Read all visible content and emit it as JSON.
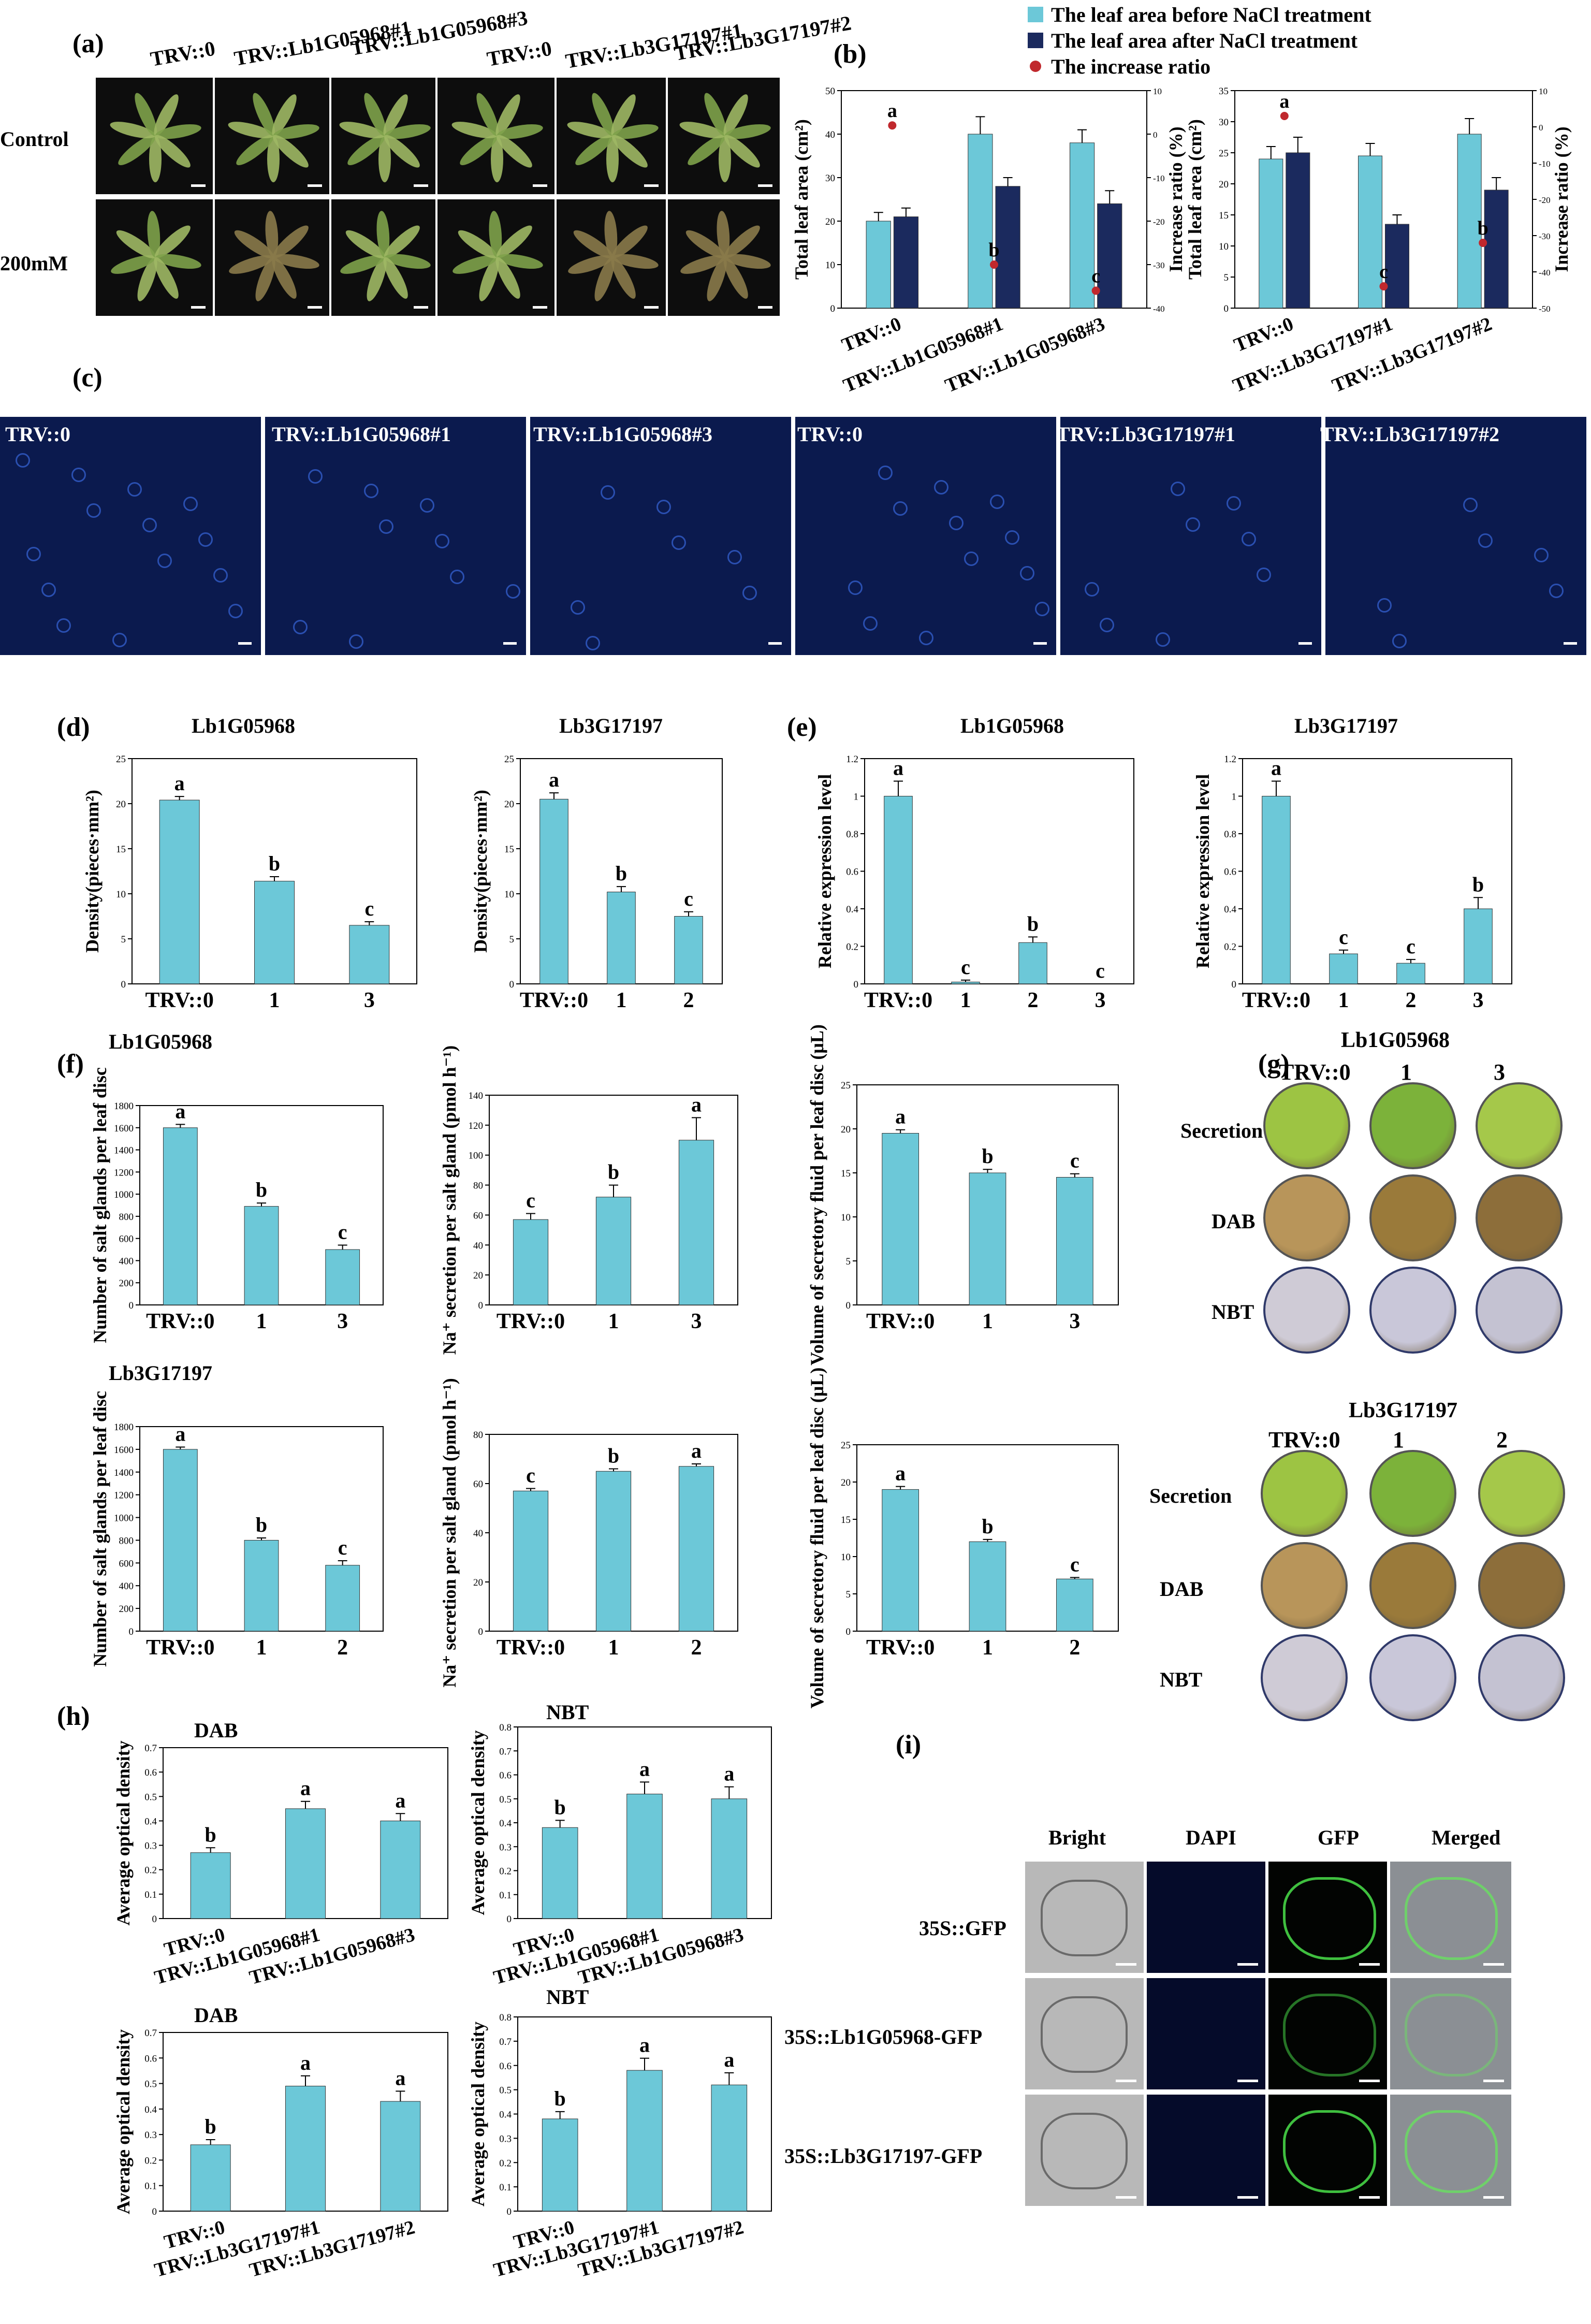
{
  "panels": {
    "a": "(a)",
    "b": "(b)",
    "c": "(c)",
    "d": "(d)",
    "e": "(e)",
    "f": "(f)",
    "g": "(g)",
    "h": "(h)",
    "i": "(i)"
  },
  "panel_a": {
    "columns": [
      "TRV::0",
      "TRV::Lb1G05968#1",
      "TRV::Lb1G05968#3",
      "TRV::0",
      "TRV::Lb3G17197#1",
      "TRV::Lb3G17197#2"
    ],
    "rows": [
      "Control",
      "200mM"
    ]
  },
  "legend_b": {
    "before": "The leaf area before NaCl treatment",
    "after": "The leaf area after NaCl treatment",
    "ratio": "The increase ratio"
  },
  "panel_c": {
    "labels": [
      "TRV::0",
      "TRV::Lb1G05968#1",
      "TRV::Lb1G05968#3",
      "TRV::0",
      "TRV::Lb3G17197#1",
      "TRV::Lb3G17197#2"
    ]
  },
  "panel_g": {
    "top_title": "Lb1G05968",
    "top_cols": [
      "TRV::0",
      "1",
      "3"
    ],
    "bottom_title": "Lb3G17197",
    "bottom_cols": [
      "TRV::0",
      "1",
      "2"
    ],
    "rows": [
      "Secretion",
      "DAB",
      "NBT"
    ]
  },
  "panel_i": {
    "cols": [
      "Bright",
      "DAPI",
      "GFP",
      "Merged"
    ],
    "rows": [
      "35S::GFP",
      "35S::Lb1G05968-GFP",
      "35S::Lb3G17197-GFP"
    ]
  },
  "colors": {
    "bar": "#6cc8d8",
    "bar_dark": "#1b2a5e",
    "ratio_dot": "#c0282d"
  },
  "chart_data": [
    {
      "id": "b1",
      "type": "bar",
      "categories": [
        "TRV::0",
        "TRV::Lb1G05968#1",
        "TRV::Lb1G05968#3"
      ],
      "series": [
        {
          "name": "The leaf area before NaCl treatment",
          "values": [
            20,
            40,
            38
          ],
          "err": [
            2,
            4,
            3
          ]
        },
        {
          "name": "The leaf area after NaCl treatment",
          "values": [
            21,
            28,
            24
          ],
          "err": [
            2,
            2,
            3
          ]
        }
      ],
      "ratio": {
        "name": "The increase ratio",
        "values": [
          2,
          -30,
          -36
        ],
        "letters": [
          "a",
          "b",
          "c"
        ]
      },
      "ylabel": "Total leaf area (cm²)",
      "ylabel2": "Increase ratio (%)",
      "ylim": [
        0,
        50
      ],
      "y2lim": [
        -40,
        10
      ],
      "yticks": [
        0,
        10,
        20,
        30,
        40,
        50
      ],
      "y2ticks": [
        -40,
        -30,
        -20,
        -10,
        0,
        10
      ]
    },
    {
      "id": "b2",
      "type": "bar",
      "categories": [
        "TRV::0",
        "TRV::Lb3G17197#1",
        "TRV::Lb3G17197#2"
      ],
      "series": [
        {
          "name": "The leaf area before NaCl treatment",
          "values": [
            24,
            24.5,
            28
          ],
          "err": [
            2,
            2,
            2.5
          ]
        },
        {
          "name": "The leaf area after NaCl treatment",
          "values": [
            25,
            13.5,
            19
          ],
          "err": [
            2.5,
            1.5,
            2
          ]
        }
      ],
      "ratio": {
        "name": "The increase ratio",
        "values": [
          3,
          -44,
          -32
        ],
        "letters": [
          "a",
          "c",
          "b"
        ]
      },
      "ylabel": "Total leaf area (cm²)",
      "ylabel2": "Increase ratio (%)",
      "ylim": [
        0,
        35
      ],
      "y2lim": [
        -50,
        10
      ],
      "yticks": [
        0,
        5,
        10,
        15,
        20,
        25,
        30,
        35
      ],
      "y2ticks": [
        -50,
        -40,
        -30,
        -20,
        -10,
        0,
        10
      ]
    },
    {
      "id": "d1",
      "type": "bar",
      "title": "Lb1G05968",
      "categories": [
        "TRV::0",
        "1",
        "3"
      ],
      "values": [
        20.4,
        11.4,
        6.5
      ],
      "err": [
        0.4,
        0.5,
        0.4
      ],
      "letters": [
        "a",
        "b",
        "c"
      ],
      "ylabel": "Density(pieces·mm²)",
      "ylim": [
        0,
        25
      ],
      "yticks": [
        0,
        5,
        10,
        15,
        20,
        25
      ]
    },
    {
      "id": "d2",
      "type": "bar",
      "title": "Lb3G17197",
      "categories": [
        "TRV::0",
        "1",
        "2"
      ],
      "values": [
        20.5,
        10.2,
        7.5
      ],
      "err": [
        0.7,
        0.6,
        0.5
      ],
      "letters": [
        "a",
        "b",
        "c"
      ],
      "ylabel": "Density(pieces·mm²)",
      "ylim": [
        0,
        25
      ],
      "yticks": [
        0,
        5,
        10,
        15,
        20,
        25
      ]
    },
    {
      "id": "e1",
      "type": "bar",
      "title": "Lb1G05968",
      "categories": [
        "TRV::0",
        "1",
        "2",
        "3"
      ],
      "values": [
        1.0,
        0.01,
        0.22,
        0.0
      ],
      "err": [
        0.08,
        0.01,
        0.03,
        0.0
      ],
      "letters": [
        "a",
        "c",
        "b",
        "c"
      ],
      "ylabel": "Relative expression level",
      "ylim": [
        0,
        1.2
      ],
      "yticks": [
        0,
        0.2,
        0.4,
        0.6,
        0.8,
        1.0,
        1.2
      ]
    },
    {
      "id": "e2",
      "type": "bar",
      "title": "Lb3G17197",
      "categories": [
        "TRV::0",
        "1",
        "2",
        "3"
      ],
      "values": [
        1.0,
        0.16,
        0.11,
        0.4
      ],
      "err": [
        0.08,
        0.02,
        0.02,
        0.06
      ],
      "letters": [
        "a",
        "c",
        "c",
        "b"
      ],
      "ylabel": "Relative expression level",
      "ylim": [
        0,
        1.2
      ],
      "yticks": [
        0,
        0.2,
        0.4,
        0.6,
        0.8,
        1.0,
        1.2
      ]
    },
    {
      "id": "f1",
      "type": "bar",
      "title": "Lb1G05968",
      "categories": [
        "TRV::0",
        "1",
        "3"
      ],
      "values": [
        1600,
        890,
        500
      ],
      "err": [
        30,
        30,
        40
      ],
      "letters": [
        "a",
        "b",
        "c"
      ],
      "ylabel": "Number of salt glands per leaf disc",
      "ylim": [
        0,
        1800
      ],
      "yticks": [
        0,
        200,
        400,
        600,
        800,
        1000,
        1200,
        1400,
        1600,
        1800
      ]
    },
    {
      "id": "f2",
      "type": "bar",
      "categories": [
        "TRV::0",
        "1",
        "3"
      ],
      "values": [
        57,
        72,
        110
      ],
      "err": [
        4,
        8,
        15
      ],
      "letters": [
        "c",
        "b",
        "a"
      ],
      "ylabel": "Na⁺ secretion per salt gland (pmol h⁻¹)",
      "ylim": [
        0,
        140
      ],
      "yticks": [
        0,
        20,
        40,
        60,
        80,
        100,
        120,
        140
      ]
    },
    {
      "id": "f3",
      "type": "bar",
      "categories": [
        "TRV::0",
        "1",
        "3"
      ],
      "values": [
        19.5,
        15,
        14.5
      ],
      "err": [
        0.4,
        0.4,
        0.4
      ],
      "letters": [
        "a",
        "b",
        "c"
      ],
      "ylabel": "Volume of secretory fluid per leaf disc (μL)",
      "ylim": [
        0,
        25
      ],
      "yticks": [
        0,
        5,
        10,
        15,
        20,
        25
      ]
    },
    {
      "id": "f4",
      "type": "bar",
      "title": "Lb3G17197",
      "categories": [
        "TRV::0",
        "1",
        "2"
      ],
      "values": [
        1600,
        800,
        580
      ],
      "err": [
        20,
        20,
        40
      ],
      "letters": [
        "a",
        "b",
        "c"
      ],
      "ylabel": "Number of salt glands per leaf disc",
      "ylim": [
        0,
        1800
      ],
      "yticks": [
        0,
        200,
        400,
        600,
        800,
        1000,
        1200,
        1400,
        1600,
        1800
      ]
    },
    {
      "id": "f5",
      "type": "bar",
      "categories": [
        "TRV::0",
        "1",
        "2"
      ],
      "values": [
        57,
        65,
        67
      ],
      "err": [
        1,
        1,
        1
      ],
      "letters": [
        "c",
        "b",
        "a"
      ],
      "ylabel": "Na⁺ secretion per salt gland (pmol h⁻¹)",
      "ylim": [
        0,
        80
      ],
      "yticks": [
        0,
        20,
        40,
        60,
        80
      ]
    },
    {
      "id": "f6",
      "type": "bar",
      "categories": [
        "TRV::0",
        "1",
        "2"
      ],
      "values": [
        19,
        12,
        7
      ],
      "err": [
        0.4,
        0.3,
        0.2
      ],
      "letters": [
        "a",
        "b",
        "c"
      ],
      "ylabel": "Volume of secretory fluid per leaf disc (μL)",
      "ylim": [
        0,
        25
      ],
      "yticks": [
        0,
        5,
        10,
        15,
        20,
        25
      ]
    },
    {
      "id": "h1",
      "type": "bar",
      "title": "DAB",
      "categories": [
        "TRV::0",
        "TRV::Lb1G05968#1",
        "TRV::Lb1G05968#3"
      ],
      "values": [
        0.27,
        0.45,
        0.4
      ],
      "err": [
        0.02,
        0.03,
        0.03
      ],
      "letters": [
        "b",
        "a",
        "a"
      ],
      "ylabel": "Average optical density",
      "ylim": [
        0,
        0.7
      ],
      "yticks": [
        0,
        0.1,
        0.2,
        0.3,
        0.4,
        0.5,
        0.6,
        0.7
      ]
    },
    {
      "id": "h2",
      "type": "bar",
      "title": "NBT",
      "categories": [
        "TRV::0",
        "TRV::Lb1G05968#1",
        "TRV::Lb1G05968#3"
      ],
      "values": [
        0.38,
        0.52,
        0.5
      ],
      "err": [
        0.03,
        0.05,
        0.05
      ],
      "letters": [
        "b",
        "a",
        "a"
      ],
      "ylabel": "Average optical density",
      "ylim": [
        0,
        0.8
      ],
      "yticks": [
        0,
        0.1,
        0.2,
        0.3,
        0.4,
        0.5,
        0.6,
        0.7,
        0.8
      ]
    },
    {
      "id": "h3",
      "type": "bar",
      "title": "DAB",
      "categories": [
        "TRV::0",
        "TRV::Lb3G17197#1",
        "TRV::Lb3G17197#2"
      ],
      "values": [
        0.26,
        0.49,
        0.43
      ],
      "err": [
        0.02,
        0.04,
        0.04
      ],
      "letters": [
        "b",
        "a",
        "a"
      ],
      "ylabel": "Average optical density",
      "ylim": [
        0,
        0.7
      ],
      "yticks": [
        0,
        0.1,
        0.2,
        0.3,
        0.4,
        0.5,
        0.6,
        0.7
      ]
    },
    {
      "id": "h4",
      "type": "bar",
      "title": "NBT",
      "categories": [
        "TRV::0",
        "TRV::Lb3G17197#1",
        "TRV::Lb3G17197#2"
      ],
      "values": [
        0.38,
        0.58,
        0.52
      ],
      "err": [
        0.03,
        0.05,
        0.05
      ],
      "letters": [
        "b",
        "a",
        "a"
      ],
      "ylabel": "Average optical density",
      "ylim": [
        0,
        0.8
      ],
      "yticks": [
        0,
        0.1,
        0.2,
        0.3,
        0.4,
        0.5,
        0.6,
        0.7,
        0.8
      ]
    }
  ]
}
